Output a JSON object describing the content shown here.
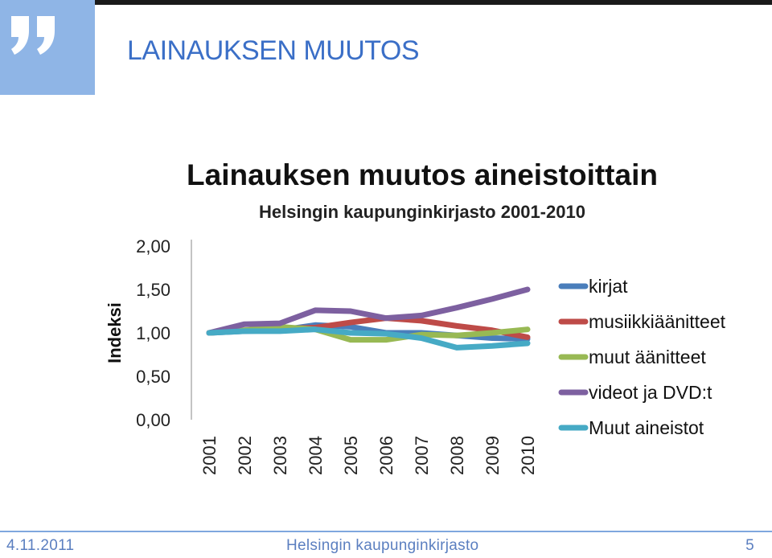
{
  "slide": {
    "title": "LAINAUKSEN MUUTOS"
  },
  "footer": {
    "date": "4.11.2011",
    "organization": "Helsingin kaupunginkirjasto",
    "page": "5"
  },
  "colors": {
    "header_bg": "#1a1a1a",
    "quote_box": "#8fb5e6",
    "title_text": "#3b6fc7",
    "footer_text": "#5b7fc0"
  },
  "chart_data": {
    "type": "line",
    "title": "Lainauksen muutos aineistoittain",
    "subtitle": "Helsingin kaupunginkirjasto 2001-2010",
    "ylabel": "Indeksi",
    "xlabel": "",
    "ylim": [
      0,
      2
    ],
    "yticks": [
      "0,00",
      "0,50",
      "1,00",
      "1,50",
      "2,00"
    ],
    "ytick_values": [
      0,
      0.5,
      1,
      1.5,
      2
    ],
    "x": [
      "2001",
      "2002",
      "2003",
      "2004",
      "2005",
      "2006",
      "2007",
      "2008",
      "2009",
      "2010"
    ],
    "grid": false,
    "legend_position": "right",
    "series": [
      {
        "name": "kirjat",
        "color": "#4a7ebb",
        "values": [
          1.0,
          1.02,
          1.03,
          1.09,
          1.07,
          1.0,
          1.0,
          0.97,
          0.94,
          0.93
        ]
      },
      {
        "name": "musiikkiäänitteet",
        "color": "#be4b48",
        "values": [
          1.0,
          1.03,
          1.05,
          1.06,
          1.12,
          1.17,
          1.14,
          1.08,
          1.03,
          0.95
        ]
      },
      {
        "name": "muut äänitteet",
        "color": "#98b954",
        "values": [
          1.0,
          1.03,
          1.07,
          1.04,
          0.92,
          0.92,
          0.98,
          0.97,
          1.0,
          1.04
        ]
      },
      {
        "name": "videot ja DVD:t",
        "color": "#7d60a0",
        "values": [
          1.0,
          1.1,
          1.11,
          1.26,
          1.25,
          1.17,
          1.2,
          1.29,
          1.39,
          1.5
        ]
      },
      {
        "name": "Muut aineistot",
        "color": "#46aac5",
        "values": [
          1.0,
          1.02,
          1.02,
          1.04,
          1.0,
          0.99,
          0.94,
          0.83,
          0.85,
          0.88
        ]
      }
    ]
  }
}
